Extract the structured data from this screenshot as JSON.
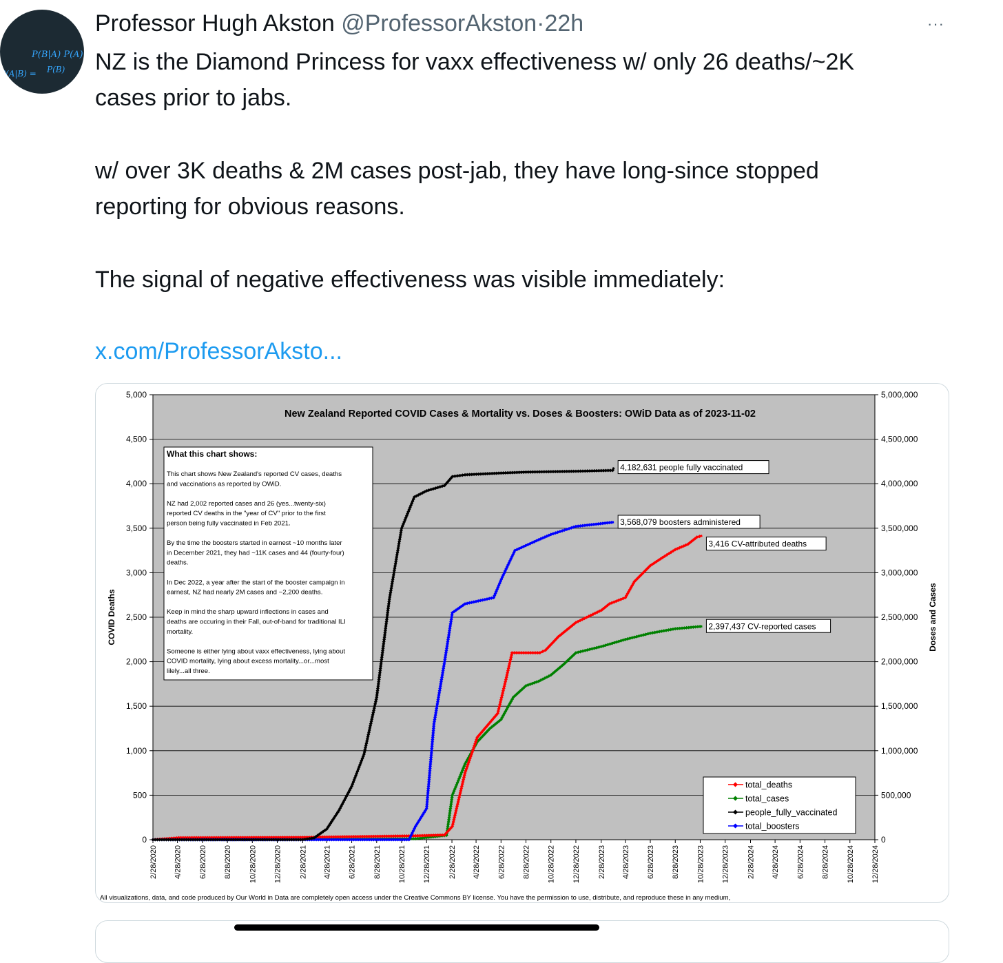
{
  "tweet": {
    "author_name": "Professor Hugh Akston",
    "handle": "@ProfessorAkston",
    "separator": "·",
    "time": "22h",
    "more_icon": "more-horizontal-icon",
    "lines": [
      "NZ is the Diamond Princess for vaxx effectiveness w/ only 26 deaths/~2K",
      "cases prior to jabs.",
      "w/ over 3K deaths & 2M cases post-jab, they have long-since stopped",
      "reporting for obvious reasons.",
      "The signal of negative effectiveness was visible immediately:"
    ],
    "link": "x.com/ProfessorAksto...",
    "avatar": {
      "icon": "avatar",
      "formula_top": "P(B|A) P(A)",
      "formula_left": "P(A|B) =",
      "formula_bottom": "P(B)"
    },
    "link_color": "#1d9bf0"
  },
  "chart_data": {
    "type": "line",
    "title": "New Zealand Reported COVID Cases & Mortality vs. Doses & Boosters: OWiD Data as of 2023-11-02",
    "ylabel_left": "COVID Deaths",
    "ylabel_right": "Doses and Cases",
    "ylim_left": [
      0,
      5000
    ],
    "ylim_right": [
      0,
      5000000
    ],
    "yticks_left": [
      "0",
      "500",
      "1,000",
      "1,500",
      "2,000",
      "2,500",
      "3,000",
      "3,500",
      "4,000",
      "4,500",
      "5,000"
    ],
    "yticks_right": [
      "0",
      "500,000",
      "1,000,000",
      "1,500,000",
      "2,000,000",
      "2,500,000",
      "3,000,000",
      "3,500,000",
      "4,000,000",
      "4,500,000",
      "5,000,000"
    ],
    "x_ticks": [
      "2/28/2020",
      "4/28/2020",
      "6/28/2020",
      "8/28/2020",
      "10/28/2020",
      "12/28/2020",
      "2/28/2021",
      "4/28/2021",
      "6/28/2021",
      "8/28/2021",
      "10/28/2021",
      "12/28/2021",
      "2/28/2022",
      "4/28/2022",
      "6/28/2022",
      "8/28/2022",
      "10/28/2022",
      "12/28/2022",
      "2/28/2023",
      "4/28/2023",
      "6/28/2023",
      "8/28/2023",
      "10/28/2023",
      "12/28/2023",
      "2/28/2024",
      "4/28/2024",
      "6/28/2024",
      "8/28/2024",
      "10/28/2024",
      "12/28/2024"
    ],
    "grid": true,
    "legend_position": "bottom-right",
    "series": [
      {
        "name": "total_deaths",
        "axis": "left",
        "color": "#ff0000",
        "points": [
          [
            "2020-02-28",
            0
          ],
          [
            "2020-05-01",
            22
          ],
          [
            "2021-02-28",
            26
          ],
          [
            "2021-12-01",
            44
          ],
          [
            "2022-02-10",
            53
          ],
          [
            "2022-03-01",
            150
          ],
          [
            "2022-04-01",
            750
          ],
          [
            "2022-05-01",
            1150
          ],
          [
            "2022-06-20",
            1420
          ],
          [
            "2022-07-10",
            1800
          ],
          [
            "2022-07-25",
            2100
          ],
          [
            "2022-10-01",
            2100
          ],
          [
            "2022-10-15",
            2130
          ],
          [
            "2022-11-15",
            2280
          ],
          [
            "2022-12-28",
            2440
          ],
          [
            "2023-03-01",
            2580
          ],
          [
            "2023-03-20",
            2650
          ],
          [
            "2023-04-28",
            2720
          ],
          [
            "2023-05-20",
            2900
          ],
          [
            "2023-06-28",
            3080
          ],
          [
            "2023-07-28",
            3170
          ],
          [
            "2023-08-28",
            3260
          ],
          [
            "2023-09-28",
            3320
          ],
          [
            "2023-10-20",
            3400
          ],
          [
            "2023-11-02",
            3416
          ]
        ]
      },
      {
        "name": "total_cases",
        "axis": "right",
        "color": "#008000",
        "points": [
          [
            "2020-02-28",
            0
          ],
          [
            "2021-02-28",
            2002
          ],
          [
            "2021-12-01",
            11000
          ],
          [
            "2022-02-15",
            50000
          ],
          [
            "2022-03-01",
            500000
          ],
          [
            "2022-04-01",
            850000
          ],
          [
            "2022-05-01",
            1100000
          ],
          [
            "2022-06-01",
            1250000
          ],
          [
            "2022-06-28",
            1350000
          ],
          [
            "2022-07-28",
            1600000
          ],
          [
            "2022-08-28",
            1730000
          ],
          [
            "2022-09-28",
            1780000
          ],
          [
            "2022-10-28",
            1850000
          ],
          [
            "2022-11-28",
            1970000
          ],
          [
            "2022-12-28",
            2100000
          ],
          [
            "2023-02-28",
            2170000
          ],
          [
            "2023-04-28",
            2250000
          ],
          [
            "2023-06-28",
            2320000
          ],
          [
            "2023-08-28",
            2370000
          ],
          [
            "2023-11-02",
            2397437
          ]
        ]
      },
      {
        "name": "people_fully_vaccinated",
        "axis": "right",
        "color": "#000000",
        "points": [
          [
            "2020-02-28",
            0
          ],
          [
            "2021-02-28",
            0
          ],
          [
            "2021-03-28",
            20000
          ],
          [
            "2021-04-28",
            120000
          ],
          [
            "2021-05-28",
            330000
          ],
          [
            "2021-06-28",
            600000
          ],
          [
            "2021-07-28",
            960000
          ],
          [
            "2021-08-28",
            1600000
          ],
          [
            "2021-09-28",
            2700000
          ],
          [
            "2021-10-28",
            3500000
          ],
          [
            "2021-11-28",
            3850000
          ],
          [
            "2021-12-28",
            3920000
          ],
          [
            "2022-02-10",
            3980000
          ],
          [
            "2022-03-01",
            4080000
          ],
          [
            "2022-04-01",
            4100000
          ],
          [
            "2022-06-28",
            4120000
          ],
          [
            "2022-08-28",
            4130000
          ],
          [
            "2022-12-28",
            4140000
          ],
          [
            "2023-03-28",
            4150000
          ],
          [
            "2023-03-31",
            4182631
          ]
        ]
      },
      {
        "name": "total_boosters",
        "axis": "right",
        "color": "#0000ff",
        "points": [
          [
            "2020-02-28",
            0
          ],
          [
            "2021-11-15",
            0
          ],
          [
            "2021-12-01",
            150000
          ],
          [
            "2021-12-28",
            350000
          ],
          [
            "2022-01-15",
            1300000
          ],
          [
            "2022-02-10",
            2000000
          ],
          [
            "2022-03-01",
            2550000
          ],
          [
            "2022-04-01",
            2650000
          ],
          [
            "2022-06-10",
            2720000
          ],
          [
            "2022-07-01",
            2950000
          ],
          [
            "2022-08-01",
            3250000
          ],
          [
            "2022-09-28",
            3370000
          ],
          [
            "2022-10-28",
            3430000
          ],
          [
            "2022-12-28",
            3520000
          ],
          [
            "2023-03-31",
            3568079
          ]
        ]
      }
    ],
    "callouts": [
      {
        "series": "people_fully_vaccinated",
        "text": "4,182,631 people fully vaccinated"
      },
      {
        "series": "total_boosters",
        "text": "3,568,079 boosters administered"
      },
      {
        "series": "total_deaths",
        "text": "3,416 CV-attributed deaths"
      },
      {
        "series": "total_cases",
        "text": "2,397,437 CV-reported cases"
      }
    ],
    "note_title": "What this chart shows:",
    "note_lines": [
      "This chart shows New Zealand's reported CV cases, deaths",
      "and vaccinations as reported by OWiD.",
      "",
      "NZ had 2,002 reported cases and 26 (yes...twenty-six)",
      "reported CV deaths in the \"year of CV\" prior to the first",
      "person being fully vaccinated in Feb 2021.",
      "",
      "By the time the boosters started in earnest ~10 months later",
      "in December 2021, they had ~11K cases and 44 (fourty-four)",
      "deaths.",
      "",
      "In Dec 2022, a year after the start of the booster campaign in",
      "earnest, NZ had nearly 2M cases and ~2,200 deaths.",
      "",
      "Keep in mind the sharp upward inflections in cases and",
      "deaths are occuring in their Fall, out-of-band for traditional ILI",
      "mortality.",
      "",
      "Someone is either lying about vaxx effectiveness, lying about",
      "COVID mortality, lying about excess mortality...or...most",
      "lilely...all three."
    ],
    "footer": "All visualizations, data, and code produced by Our World in Data are completely open access under the Creative Commons BY license. You have the permission to use, distribute, and reproduce these in any medium,"
  }
}
